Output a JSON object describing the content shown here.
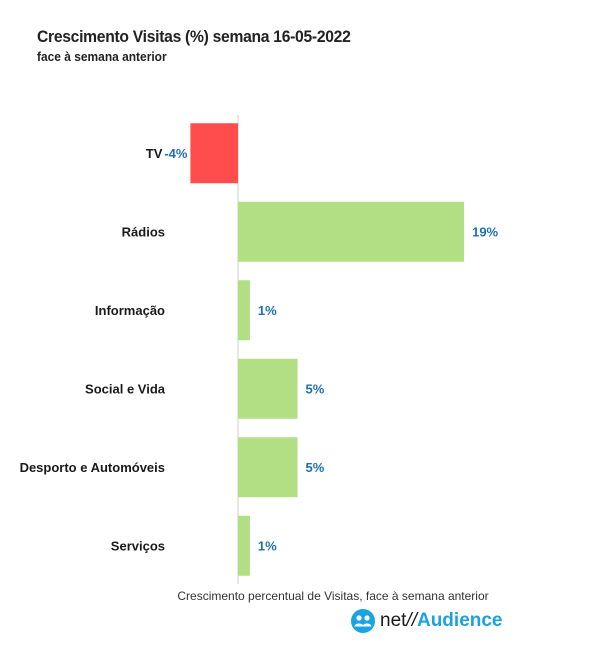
{
  "title": "Crescimento Visitas (%) semana 16-05-2022",
  "subtitle": "face à semana anterior",
  "colors": {
    "positive": "#b3df84",
    "negative": "#ff4d4d",
    "value_label": "#1f6fb5",
    "axis": "#cfcfcf"
  },
  "chart_data": {
    "type": "bar",
    "orientation": "horizontal",
    "categories": [
      "TV",
      "Rádios",
      "Informação",
      "Social e Vida",
      "Desporto e Automóveis",
      "Serviços"
    ],
    "values": [
      -4,
      19,
      1,
      5,
      5,
      1
    ],
    "value_labels": [
      "-4%",
      "19%",
      "1%",
      "5%",
      "5%",
      "1%"
    ],
    "xlabel": "Crescimento percentual de Visitas, face à semana anterior",
    "ylabel": "",
    "xlim": [
      -4,
      19
    ],
    "grid": false
  },
  "brand": {
    "icon": "users-icon",
    "net": "net",
    "separator": "//",
    "audience": "Audience"
  }
}
